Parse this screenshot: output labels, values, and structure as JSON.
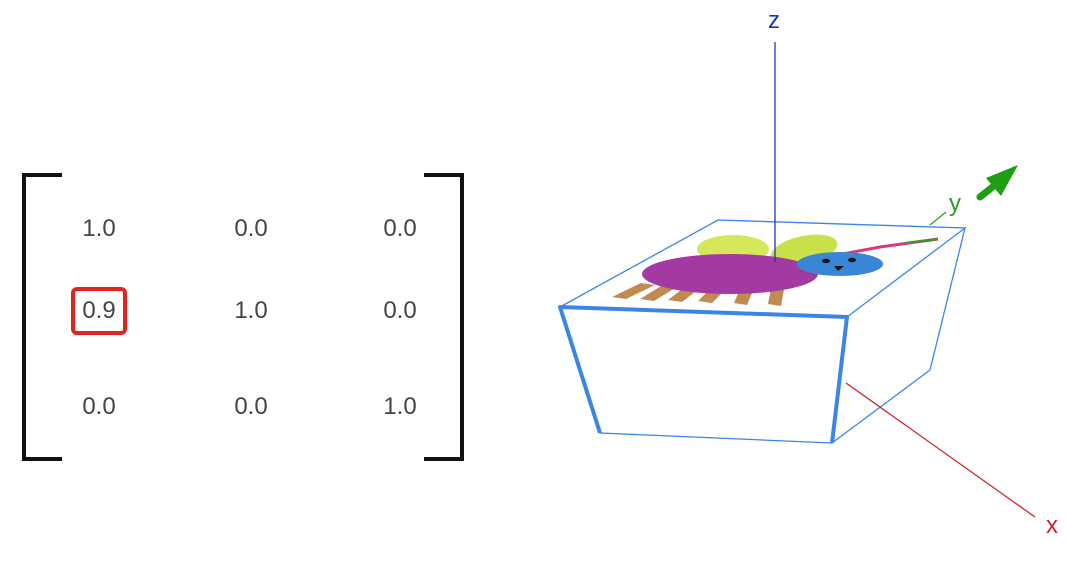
{
  "matrix": {
    "rows": [
      [
        "1.0",
        "0.0",
        "0.0"
      ],
      [
        "0.9",
        "1.0",
        "0.0"
      ],
      [
        "0.0",
        "0.0",
        "1.0"
      ]
    ],
    "highlighted_cell": {
      "row": 1,
      "col": 0
    },
    "highlight_color": "#e1251b"
  },
  "axes": {
    "x": {
      "label": "x",
      "color": "#c62828"
    },
    "y": {
      "label": "y",
      "color": "#2e9e22"
    },
    "z": {
      "label": "z",
      "color": "#2233bb"
    }
  },
  "box": {
    "edge_color": "#3a86e6"
  },
  "creature": {
    "body_color": "#a33aa3",
    "wing_color": "#d6e85a",
    "head_color": "#3a86d6",
    "leg_color": "#c18a4f",
    "antenna_color": "#d63a7a"
  }
}
